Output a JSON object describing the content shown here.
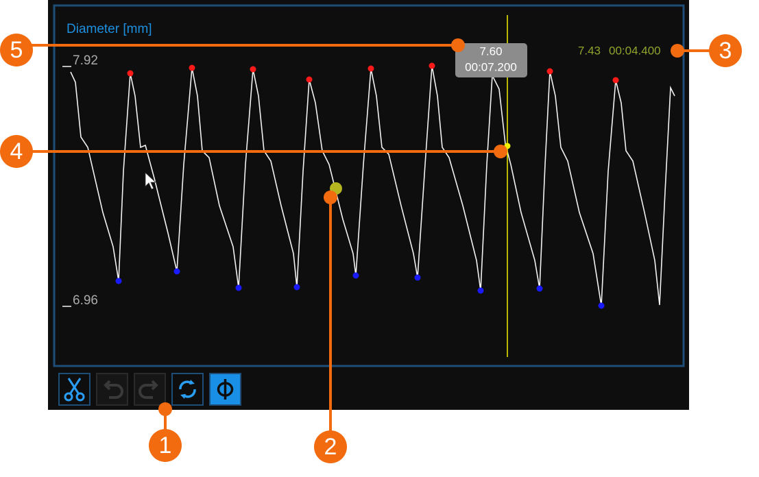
{
  "panel": {
    "title": "Diameter [mm]",
    "scale_max": "7.92",
    "scale_min": "6.96",
    "tooltip": {
      "value": "7.60",
      "time": "00:07.200"
    },
    "cursor_readout": {
      "value": "7.43",
      "time": "00:04.400"
    }
  },
  "callouts": [
    "1",
    "2",
    "3",
    "4",
    "5"
  ]
}
